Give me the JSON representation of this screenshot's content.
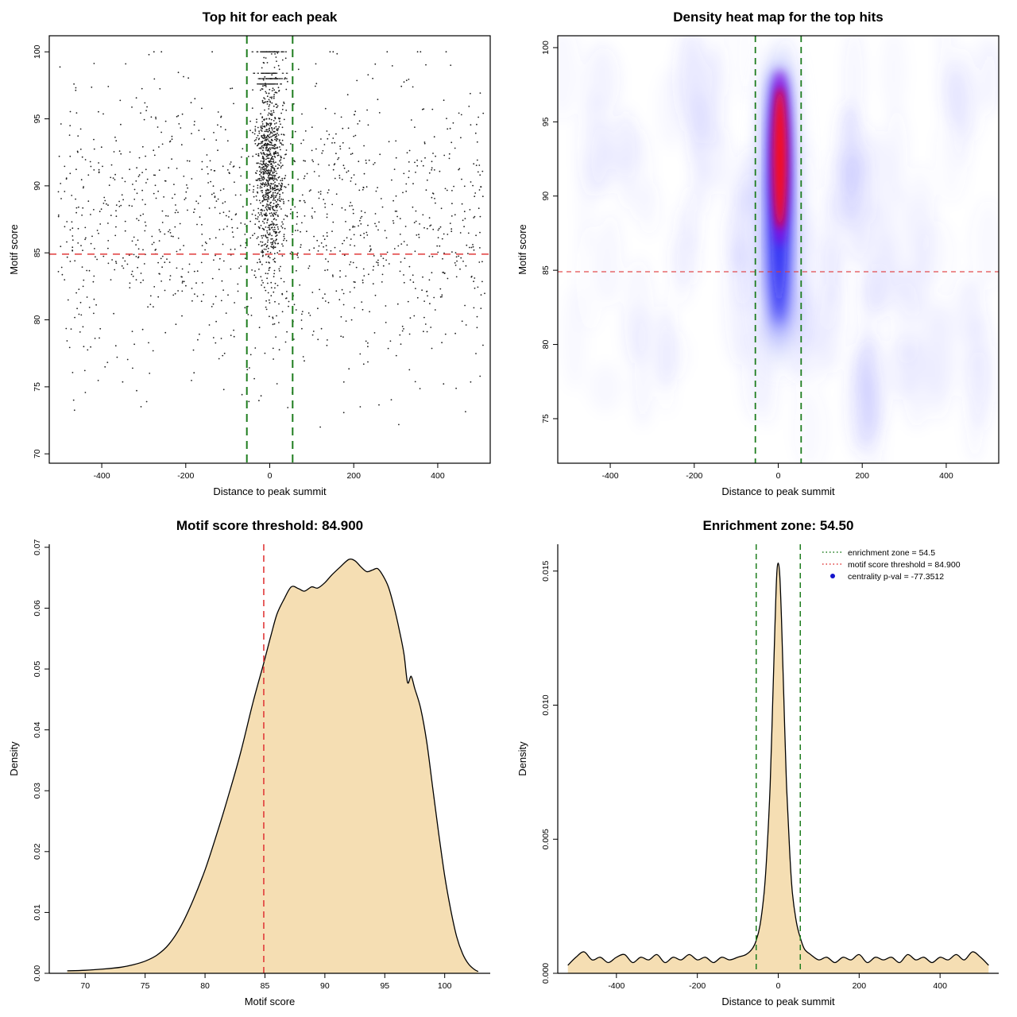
{
  "colors": {
    "red": "#e03a3a",
    "green": "#1e7d1e",
    "wheat": "#f5deb3",
    "black": "#000000",
    "legend_blue": "#1414cc",
    "heat_palette": [
      "#c6d0fa",
      "#5050ff",
      "#0d0df0",
      "#a008d8",
      "#ff0f0f"
    ]
  },
  "chart_data": [
    {
      "id": "top_hits_scatter",
      "type": "scatter",
      "title": "Top hit for each peak",
      "xlabel": "Distance to peak summit",
      "ylabel": "Motif score",
      "xlim": [
        -525,
        525
      ],
      "ylim": [
        69.3,
        101.2
      ],
      "xticks": {
        "values": [
          -400,
          -200,
          0,
          200,
          400
        ],
        "labels": [
          "-400",
          "-200",
          "0",
          "200",
          "400"
        ]
      },
      "yticks": {
        "values": [
          70,
          75,
          80,
          85,
          90,
          95,
          100
        ],
        "labels": [
          "70",
          "75",
          "80",
          "85",
          "90",
          "95",
          "100"
        ]
      },
      "hline_y": 84.9,
      "vlines_x": [
        -54.5,
        54.5
      ],
      "point_gen": {
        "seed": 42,
        "background": {
          "n": 1250,
          "x_min": -505,
          "x_max": 512,
          "y_mean": 86.8,
          "y_sd": 5.6,
          "y_min": 71.5,
          "y_max": 100
        },
        "central": {
          "n": 900,
          "x_sd": 17,
          "x_max": 53.5,
          "y_mean": 91.0,
          "y_sd": 3.6,
          "y_min": 79.5,
          "y_max": 100
        },
        "top_row": {
          "n": 120,
          "y": 100,
          "x_sd": 13
        },
        "bands": {
          "n_each": 38,
          "ys": [
            97.6,
            98.0,
            98.4
          ],
          "x_sd": 15
        }
      }
    },
    {
      "id": "density_heatmap",
      "type": "heatmap",
      "title": "Density heat map for the top hits",
      "xlabel": "Distance to peak summit",
      "ylabel": "Motif score",
      "xlim": [
        -525,
        525
      ],
      "ylim": [
        72,
        100.8
      ],
      "xticks": {
        "values": [
          -400,
          -200,
          0,
          200,
          400
        ],
        "labels": [
          "-400",
          "-200",
          "0",
          "200",
          "400"
        ]
      },
      "yticks": {
        "values": [
          75,
          80,
          85,
          90,
          95,
          100
        ],
        "labels": [
          "75",
          "80",
          "85",
          "90",
          "95",
          "100"
        ]
      },
      "hline_y": 84.9,
      "vlines_x": [
        -54.5,
        54.5
      ],
      "noise": {
        "seed": 7,
        "n_soft": 110,
        "n_strong": 16
      },
      "hotspot": {
        "cx": 2,
        "rx_data": 46,
        "y_top": 100.3,
        "y_bottom": 78.5,
        "core_cx": 4,
        "core_rx_data": 15,
        "core_y_top": 97.3,
        "core_y_bottom": 87.8
      }
    },
    {
      "id": "motif_score_density",
      "type": "area",
      "title": "Motif score threshold: 84.900",
      "xlabel": "Motif score",
      "ylabel": "Density",
      "xlim": [
        67.0,
        103.8
      ],
      "ylim": [
        0,
        0.0705
      ],
      "xticks": {
        "values": [
          70,
          75,
          80,
          85,
          90,
          95,
          100
        ],
        "labels": [
          "70",
          "75",
          "80",
          "85",
          "90",
          "95",
          "100"
        ]
      },
      "yticks": {
        "values": [
          0.0,
          0.01,
          0.02,
          0.03,
          0.04,
          0.05,
          0.06,
          0.07
        ],
        "labels": [
          "0.00",
          "0.01",
          "0.02",
          "0.03",
          "0.04",
          "0.05",
          "0.06",
          "0.07"
        ]
      },
      "vline_x": 84.9,
      "curve": {
        "x": [
          68.5,
          70,
          71.5,
          73,
          74,
          75,
          76,
          77,
          78,
          79,
          80,
          81,
          82,
          83,
          84,
          84.9,
          85.5,
          86,
          86.6,
          87.2,
          87.8,
          88.3,
          88.9,
          89.4,
          90,
          90.6,
          91.3,
          92,
          92.5,
          93,
          93.5,
          94,
          94.4,
          94.8,
          95.3,
          95.8,
          96.2,
          96.6,
          96.9,
          97.2,
          97.5,
          98,
          98.5,
          99,
          99.5,
          100,
          100.5,
          101,
          101.5,
          102,
          102.5,
          102.8
        ],
        "y": [
          0.0004,
          0.0005,
          0.0007,
          0.001,
          0.0014,
          0.002,
          0.003,
          0.0048,
          0.0078,
          0.012,
          0.017,
          0.023,
          0.0295,
          0.0365,
          0.0445,
          0.051,
          0.0555,
          0.059,
          0.0615,
          0.0635,
          0.0632,
          0.0628,
          0.0635,
          0.0633,
          0.0642,
          0.0655,
          0.0668,
          0.068,
          0.0678,
          0.0668,
          0.066,
          0.0663,
          0.0665,
          0.0655,
          0.0635,
          0.06,
          0.0565,
          0.0525,
          0.0478,
          0.0488,
          0.0468,
          0.0435,
          0.038,
          0.0305,
          0.023,
          0.016,
          0.0105,
          0.006,
          0.0032,
          0.0015,
          0.0006,
          0.0003
        ]
      }
    },
    {
      "id": "enrichment_zone_density",
      "type": "area",
      "title": "Enrichment zone: 54.50",
      "xlabel": "Distance to peak summit",
      "ylabel": "Density",
      "xlim": [
        -545,
        545
      ],
      "ylim": [
        0,
        0.016
      ],
      "xticks": {
        "values": [
          -400,
          -200,
          0,
          200,
          400
        ],
        "labels": [
          "-400",
          "-200",
          "0",
          "200",
          "400"
        ]
      },
      "yticks": {
        "values": [
          0.0,
          0.005,
          0.01,
          0.015
        ],
        "labels": [
          "0.000",
          "0.005",
          "0.010",
          "0.015"
        ]
      },
      "vlines_x": [
        -54.5,
        54.5
      ],
      "legend": [
        {
          "label": "enrichment zone = 54.5",
          "type": "dotted-line",
          "color": "#1e7d1e"
        },
        {
          "label": "motif score threshold = 84.900",
          "type": "dotted-line",
          "color": "#e03a3a"
        },
        {
          "label": "centrality p-val = -77.3512",
          "type": "point",
          "color": "#1414cc"
        }
      ],
      "curve": {
        "x": [
          -520,
          -500,
          -480,
          -460,
          -440,
          -420,
          -400,
          -380,
          -360,
          -340,
          -320,
          -300,
          -280,
          -260,
          -240,
          -220,
          -200,
          -180,
          -160,
          -140,
          -120,
          -100,
          -80,
          -65,
          -55,
          -45,
          -35,
          -28,
          -20,
          -14,
          -8,
          -4,
          0,
          4,
          8,
          14,
          20,
          28,
          35,
          45,
          55,
          65,
          80,
          100,
          120,
          140,
          160,
          180,
          200,
          220,
          240,
          260,
          280,
          300,
          320,
          340,
          360,
          380,
          400,
          420,
          440,
          460,
          480,
          500,
          520
        ],
        "y": [
          0.0003,
          0.0006,
          0.0008,
          0.0005,
          0.0006,
          0.0004,
          0.0006,
          0.0007,
          0.0004,
          0.0006,
          0.0005,
          0.0007,
          0.0004,
          0.0006,
          0.0005,
          0.0007,
          0.0005,
          0.0006,
          0.0004,
          0.0006,
          0.0005,
          0.0006,
          0.0007,
          0.0009,
          0.0012,
          0.0018,
          0.003,
          0.0045,
          0.007,
          0.01,
          0.013,
          0.0148,
          0.0153,
          0.0148,
          0.0132,
          0.0102,
          0.0072,
          0.0046,
          0.003,
          0.0019,
          0.0013,
          0.0009,
          0.0007,
          0.0005,
          0.0006,
          0.0004,
          0.0006,
          0.0005,
          0.0007,
          0.0004,
          0.0006,
          0.0005,
          0.0006,
          0.0004,
          0.0007,
          0.0005,
          0.0006,
          0.0004,
          0.0006,
          0.0005,
          0.0007,
          0.0005,
          0.0008,
          0.0006,
          0.0003
        ]
      }
    }
  ]
}
